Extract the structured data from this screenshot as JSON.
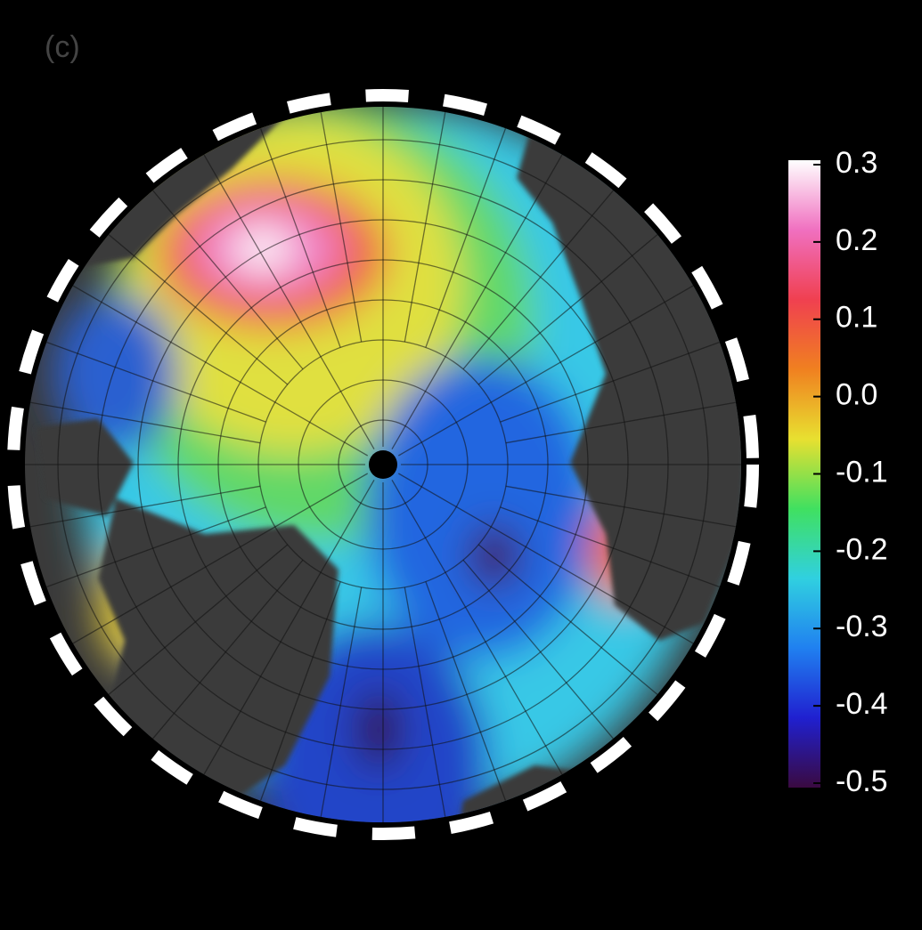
{
  "panel_label": "(c)",
  "colorbar": {
    "lim": [
      -0.5,
      0.3
    ],
    "ticks": [
      0.3,
      0.2,
      0.1,
      {
        "value": 0,
        "label": "0.0"
      },
      -0.1,
      -0.2,
      -0.3,
      -0.4,
      -0.5
    ],
    "colors": [
      "#3a0a40",
      "#2020d0",
      "#2080f0",
      "#30d0e0",
      "#40e060",
      "#e8e030",
      "#f08020",
      "#f04050",
      "#f070c0",
      "#ffffff"
    ]
  }
}
